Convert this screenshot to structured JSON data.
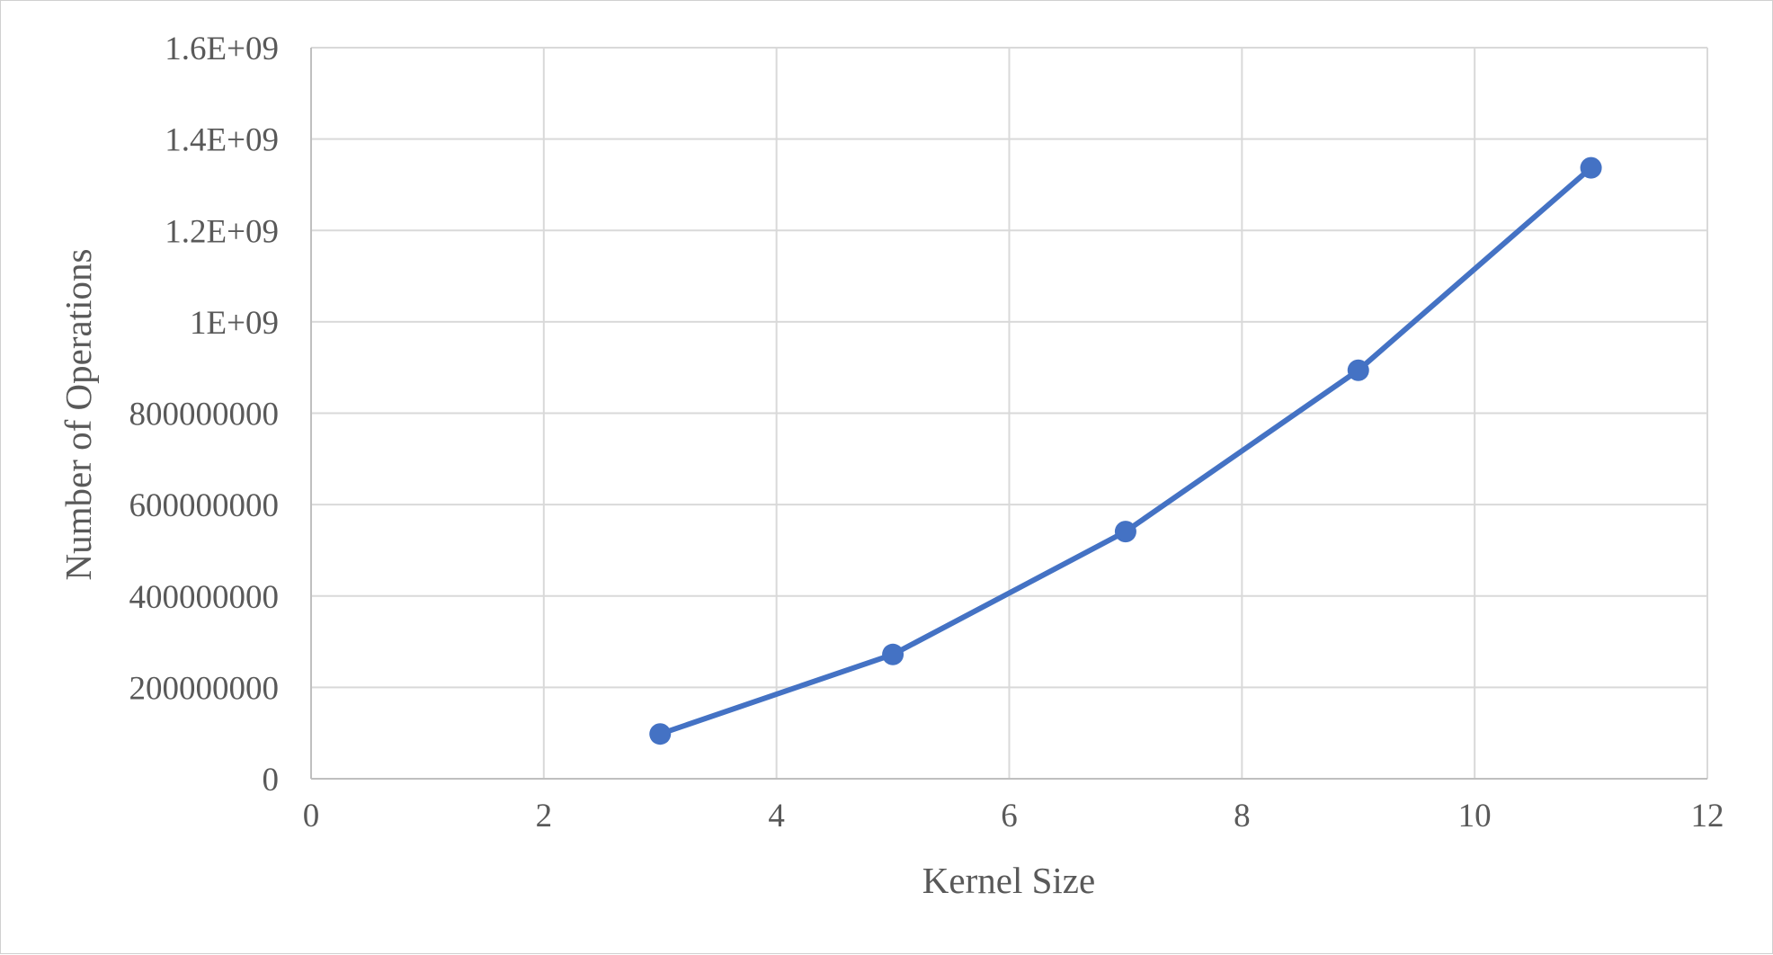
{
  "chart_data": {
    "type": "scatter",
    "xlabel": "Kernel Size",
    "ylabel": "Number of Operations",
    "xlim": [
      0,
      12
    ],
    "ylim": [
      0,
      1600000000
    ],
    "x_ticks": [
      "0",
      "2",
      "4",
      "6",
      "8",
      "10",
      "12"
    ],
    "y_ticks": [
      "0",
      "200000000",
      "400000000",
      "600000000",
      "800000000",
      "1E+09",
      "1.2E+09",
      "1.4E+09",
      "1.6E+09"
    ],
    "grid": true,
    "series": [
      {
        "x": [
          3,
          5,
          7,
          9,
          11
        ],
        "values": [
          98000000,
          272000000,
          541000000,
          894000000,
          1337000000
        ],
        "color": "#4472c4",
        "markers": true,
        "lines": true
      }
    ]
  }
}
